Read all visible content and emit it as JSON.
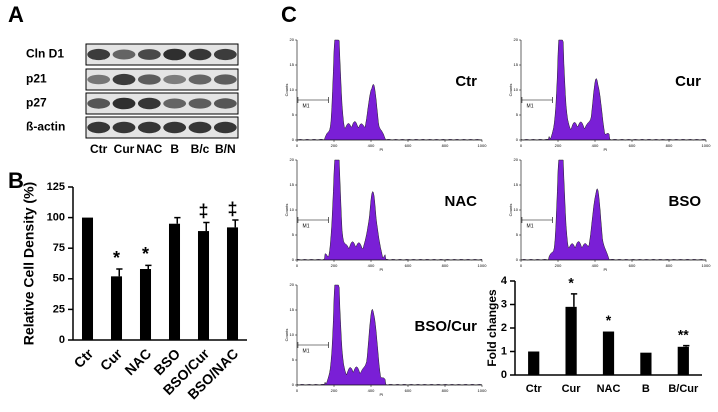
{
  "panels": {
    "a": "A",
    "b": "B",
    "c": "C"
  },
  "blot": {
    "rows": [
      "Cln D1",
      "p21",
      "p27",
      "ß-actin"
    ],
    "lanes": [
      "Ctr",
      "Cur",
      "NAC",
      "B",
      "B/c",
      "B/N"
    ]
  },
  "histogram_axes": {
    "xticks": [
      0,
      200,
      400,
      600,
      800,
      1000
    ],
    "yticks": [
      0,
      5,
      10,
      15,
      20
    ],
    "ylabel": "Counts",
    "xlabel": "PI",
    "marker": "M1",
    "xlim": [
      0,
      1000
    ],
    "ylim": [
      0,
      20
    ],
    "color": "#7a1fd6"
  },
  "histograms": [
    {
      "label": "Ctr"
    },
    {
      "label": "Cur"
    },
    {
      "label": "NAC"
    },
    {
      "label": "BSO"
    },
    {
      "label": "BSO/Cur"
    }
  ],
  "chart_data": [
    {
      "type": "bar",
      "ylabel": "Relative Cell Density (%)",
      "categories": [
        "Ctr",
        "Cur",
        "NAC",
        "BSO",
        "BSO/Cur",
        "BSO/NAC"
      ],
      "values": [
        100,
        52,
        58,
        95,
        89,
        92
      ],
      "errors": [
        0,
        6,
        3,
        5,
        7,
        6
      ],
      "markers": [
        null,
        "*",
        "*",
        null,
        "‡",
        "‡"
      ],
      "ylim": [
        0,
        125
      ],
      "yticks": [
        0,
        25,
        50,
        75,
        100,
        125
      ],
      "color": "#000000"
    },
    {
      "type": "bar",
      "ylabel": "Fold changes",
      "categories": [
        "Ctr",
        "Cur",
        "NAC",
        "B",
        "B/Cur"
      ],
      "values": [
        1,
        2.9,
        1.85,
        0.95,
        1.2
      ],
      "errors": [
        0,
        0.55,
        0,
        0,
        0.05
      ],
      "markers": [
        null,
        "*",
        "*",
        null,
        "**"
      ],
      "ylim": [
        0,
        4
      ],
      "yticks": [
        0,
        1,
        2,
        3,
        4
      ],
      "color": "#000000"
    }
  ]
}
